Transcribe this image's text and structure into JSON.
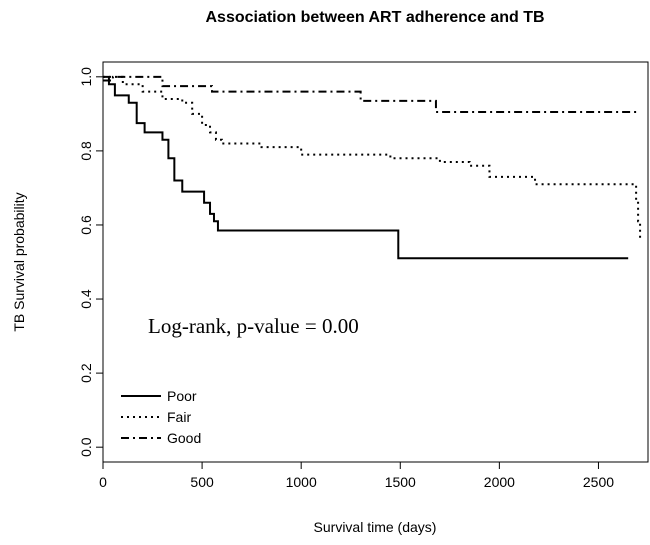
{
  "chart_data": {
    "type": "step",
    "title": "Association between ART adherence and TB",
    "xlabel": "Survival time (days)",
    "ylabel": "TB Survival probability",
    "annotation": "Log-rank, p-value = 0.00",
    "xlim": [
      0,
      2750
    ],
    "ylim": [
      -0.04,
      1.04
    ],
    "xticks": [
      0,
      500,
      1000,
      1500,
      2000,
      2500
    ],
    "yticks": [
      {
        "value": 0,
        "label": "0.0"
      },
      {
        "value": 0.2,
        "label": "0.2"
      },
      {
        "value": 0.4,
        "label": "0.4"
      },
      {
        "value": 0.6,
        "label": "0.6"
      },
      {
        "value": 0.8,
        "label": "0.8"
      },
      {
        "value": 1,
        "label": "1.0"
      }
    ],
    "legend": "bottom-left",
    "series": [
      {
        "name": "Poor",
        "color": "#000000",
        "dash": "solid",
        "x": [
          0,
          30,
          60,
          130,
          170,
          210,
          300,
          330,
          360,
          400,
          510,
          540,
          560,
          580,
          1490,
          2650
        ],
        "values": [
          1.0,
          0.98,
          0.95,
          0.93,
          0.875,
          0.85,
          0.83,
          0.78,
          0.72,
          0.69,
          0.66,
          0.63,
          0.61,
          0.585,
          0.51,
          0.51
        ]
      },
      {
        "name": "Fair",
        "color": "#000000",
        "dash": "dotted",
        "x": [
          0,
          100,
          200,
          300,
          400,
          450,
          500,
          540,
          570,
          600,
          800,
          1000,
          1450,
          1700,
          1850,
          1950,
          2180,
          2690,
          2700,
          2710
        ],
        "values": [
          1.0,
          0.98,
          0.96,
          0.94,
          0.93,
          0.9,
          0.87,
          0.85,
          0.83,
          0.82,
          0.81,
          0.79,
          0.78,
          0.77,
          0.76,
          0.73,
          0.71,
          0.66,
          0.61,
          0.56
        ]
      },
      {
        "name": "Good",
        "color": "#000000",
        "dash": "dashdot",
        "x": [
          0,
          50,
          300,
          550,
          1300,
          1680,
          2710
        ],
        "values": [
          0.99,
          1.0,
          0.975,
          0.96,
          0.935,
          0.905,
          0.905
        ]
      }
    ]
  }
}
